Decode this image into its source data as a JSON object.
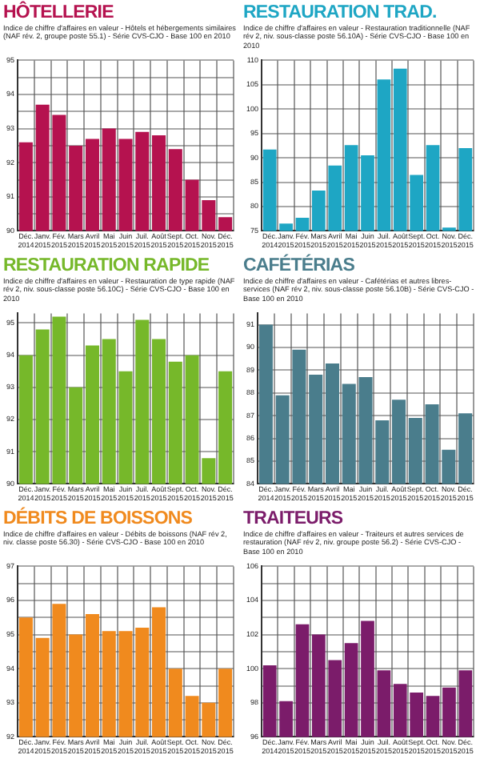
{
  "chart_data": [
    {
      "type": "bar",
      "title": "HÔTELLERIE",
      "subtitle": "Indice de chiffre d'affaires en valeur - Hôtels et hébergements similaires (NAF rév. 2, groupe poste 55.1) - Série CVS-CJO - Base 100 en 2010",
      "categories": [
        "Déc. 2014",
        "Janv. 2015",
        "Fév. 2015",
        "Mars 2015",
        "Avril 2015",
        "Mai 2015",
        "Juin 2015",
        "Juil. 2015",
        "Août 2015",
        "Sept. 2015",
        "Oct. 2015",
        "Nov. 2015",
        "Déc. 2015"
      ],
      "values": [
        92.6,
        93.7,
        93.4,
        92.5,
        92.7,
        93.0,
        92.7,
        92.9,
        92.8,
        92.4,
        91.5,
        90.9,
        90.4
      ],
      "color": "#b5124f",
      "ylim": [
        90,
        95
      ],
      "yticks": [
        90,
        {
          "value": 90.5,
          "label": null
        },
        91,
        {
          "value": 91.5,
          "label": null
        },
        92,
        {
          "value": 92.5,
          "label": null
        },
        93,
        {
          "value": 93.5,
          "label": null
        },
        94,
        {
          "value": 94.5,
          "label": null
        },
        95
      ],
      "grid": true
    },
    {
      "type": "bar",
      "title": "RESTAURATION TRAD.",
      "subtitle": "Indice de chiffre d'affaires en valeur - Restauration traditionnelle (NAF rév 2, niv. sous-classe poste 56.10A) - Série CVS-CJO - Base 100 en 2010",
      "categories": [
        "Déc. 2014",
        "Janv. 2015",
        "Fév. 2015",
        "Mars 2015",
        "Avril 2015",
        "Mai 2015",
        "Juin 2015",
        "Juil. 2015",
        "Août 2015",
        "Sept. 2015",
        "Oct. 2015",
        "Nov. 2015",
        "Déc. 2015"
      ],
      "values": [
        91.7,
        76.5,
        77.7,
        83.3,
        88.4,
        92.6,
        90.5,
        106.1,
        108.3,
        86.5,
        92.6,
        75.7,
        92.0
      ],
      "color": "#1ea6c4",
      "ylim": [
        75,
        110
      ],
      "yticks": [
        75,
        80,
        85,
        90,
        95,
        100,
        105,
        110
      ],
      "grid": true
    },
    {
      "type": "bar",
      "title": "RESTAURATION RAPIDE",
      "subtitle": "Indice de chiffre d'affaires en valeur - Restauration de type rapide (NAF rév 2, niv. sous-classe poste 56.10C) - Série CVS-CJO - Base 100 en 2010",
      "categories": [
        "Déc. 2014",
        "Janv. 2015",
        "Fév. 2015",
        "Mars 2015",
        "Avril 2015",
        "Mai 2015",
        "Juin 2015",
        "Juil. 2015",
        "Août 2015",
        "Sept. 2015",
        "Oct. 2015",
        "Nov. 2015",
        "Déc. 2015"
      ],
      "values": [
        94.0,
        94.8,
        95.2,
        93.0,
        94.3,
        94.5,
        93.5,
        95.1,
        94.5,
        93.8,
        94.0,
        90.8,
        93.5
      ],
      "color": "#76b82a",
      "ylim": [
        90,
        95.3
      ],
      "yticks": [
        90,
        91,
        92,
        93,
        94,
        95
      ],
      "grid": true
    },
    {
      "type": "bar",
      "title": "CAFÉTÉRIAS",
      "subtitle": "Indice de chiffre d'affaires en valeur - Cafétérias et autres libres-services (NAF rév 2, niv. sous-classe poste 56.10B) - Série CVS-CJO - Base 100 en 2010",
      "categories": [
        "Déc. 2014",
        "Janv. 2015",
        "Fév. 2015",
        "Mars 2015",
        "Avril 2015",
        "Mai 2015",
        "Juin 2015",
        "Juil. 2015",
        "Août 2015",
        "Sept. 2015",
        "Oct. 2015",
        "Nov. 2015",
        "Déc. 2015"
      ],
      "values": [
        91.0,
        87.9,
        89.9,
        88.8,
        89.3,
        88.4,
        88.7,
        86.8,
        87.7,
        86.9,
        87.5,
        85.5,
        87.1
      ],
      "color": "#4a7d8c",
      "ylim": [
        84,
        91.5
      ],
      "yticks": [
        84,
        85,
        86,
        87,
        88,
        89,
        90,
        91
      ],
      "grid": true
    },
    {
      "type": "bar",
      "title": "DÉBITS DE BOISSONS",
      "subtitle": "Indice de chiffre d'affaires en valeur - Débits de boissons (NAF rév 2, niv. classe poste 56.30) - Série CVS-CJO - Base 100 en 2010",
      "categories": [
        "Déc. 2014",
        "Janv. 2015",
        "Fév. 2015",
        "Mars 2015",
        "Avril 2015",
        "Mai 2015",
        "Juin 2015",
        "Juil. 2015",
        "Août 2015",
        "Sept. 2015",
        "Oct. 2015",
        "Nov. 2015",
        "Déc. 2015"
      ],
      "values": [
        95.5,
        94.9,
        95.9,
        95.0,
        95.6,
        95.1,
        95.1,
        95.2,
        95.8,
        94.0,
        93.2,
        93.0,
        94.0
      ],
      "color": "#f08a1e",
      "ylim": [
        92,
        97
      ],
      "yticks": [
        92,
        {
          "value": 92.5,
          "label": null
        },
        93,
        {
          "value": 93.5,
          "label": null
        },
        94,
        {
          "value": 94.5,
          "label": null
        },
        95,
        {
          "value": 95.5,
          "label": null
        },
        96,
        {
          "value": 96.5,
          "label": null
        },
        97
      ],
      "grid": true
    },
    {
      "type": "bar",
      "title": "TRAITEURS",
      "subtitle": "Indice de chiffre d'affaires en valeur - Traiteurs et autres services de restauration (NAF rév 2, niv. groupe poste 56.2) - Série CVS-CJO - Base 100 en 2010",
      "categories": [
        "Déc. 2014",
        "Janv. 2015",
        "Fév. 2015",
        "Mars 2015",
        "Avril 2015",
        "Mai 2015",
        "Juin 2015",
        "Juil. 2015",
        "Août 2015",
        "Sept. 2015",
        "Oct. 2015",
        "Nov. 2015",
        "Déc. 2015"
      ],
      "values": [
        100.2,
        98.1,
        102.6,
        102.0,
        100.5,
        101.5,
        102.8,
        99.9,
        99.1,
        98.6,
        98.4,
        98.9,
        99.9
      ],
      "color": "#7b1c6a",
      "ylim": [
        96,
        106
      ],
      "yticks": [
        96,
        {
          "value": 97,
          "label": null
        },
        98,
        {
          "value": 99,
          "label": null
        },
        100,
        {
          "value": 101,
          "label": null
        },
        102,
        {
          "value": 103,
          "label": null
        },
        104,
        {
          "value": 105,
          "label": null
        },
        106
      ],
      "grid": true
    }
  ]
}
